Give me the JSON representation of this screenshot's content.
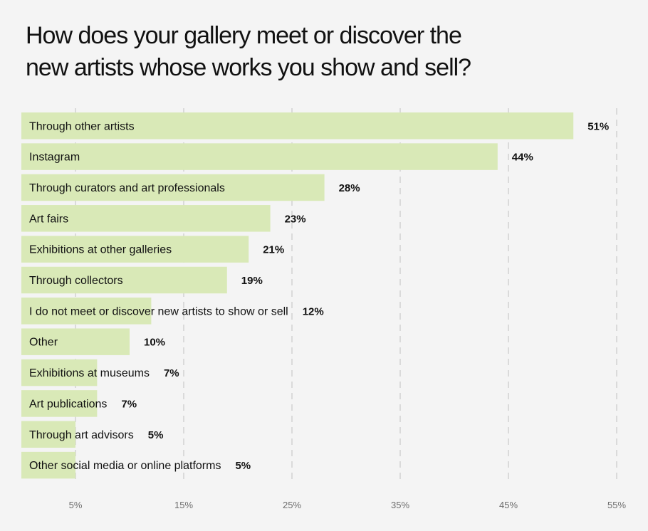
{
  "title_lines": [
    "How does your gallery meet or discover the",
    "new artists whose works you show and sell?"
  ],
  "colors": {
    "background": "#f4f4f4",
    "bar": "#d9e9b7",
    "grid": "#cfcfcf",
    "text": "#111111",
    "tick_text": "#6e6e6e"
  },
  "chart_data": {
    "type": "bar",
    "orientation": "horizontal",
    "title": "How does your gallery meet or discover the new artists whose works you show and sell?",
    "xlabel": "",
    "ylabel": "",
    "unit": "%",
    "categories": [
      "Through other artists",
      "Instagram",
      "Through curators and art professionals",
      "Art fairs",
      "Exhibitions at other galleries",
      "Through collectors",
      "I do not meet or discover new artists to show or sell",
      "Other",
      "Exhibitions at museums",
      "Art publications",
      "Through art advisors",
      "Other social media or online platforms"
    ],
    "values": [
      51,
      44,
      28,
      23,
      21,
      19,
      12,
      10,
      7,
      7,
      5,
      5
    ],
    "value_labels": [
      "51%",
      "44%",
      "28%",
      "23%",
      "21%",
      "19%",
      "12%",
      "10%",
      "7%",
      "7%",
      "5%",
      "5%"
    ],
    "xlim": [
      0,
      55
    ],
    "xticks": [
      5,
      15,
      25,
      35,
      45,
      55
    ],
    "xtick_labels": [
      "5%",
      "15%",
      "25%",
      "35%",
      "45%",
      "55%"
    ],
    "grid": "vertical dashed",
    "legend": "none"
  }
}
